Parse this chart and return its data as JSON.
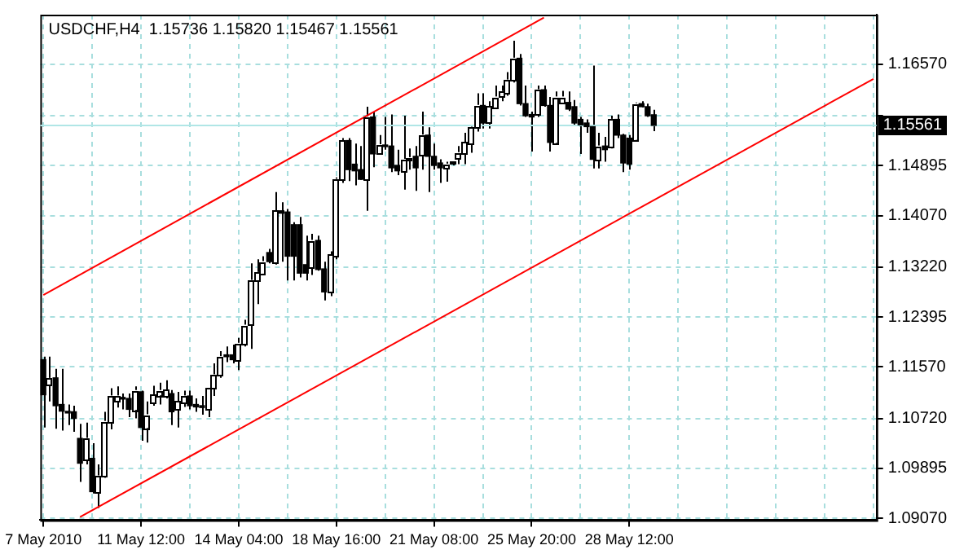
{
  "chart_data": {
    "type": "candlestick",
    "title": "USDCHF,H4  1.15736 1.15820 1.15467 1.15561",
    "categories": [
      "7 May 2010",
      null,
      null,
      null,
      null,
      null,
      null,
      null,
      null,
      null,
      null,
      null,
      null,
      null,
      null,
      null,
      "11 May 12:00",
      null,
      null,
      null,
      null,
      null,
      null,
      null,
      null,
      null,
      null,
      null,
      null,
      null,
      null,
      null,
      "14 May 04:00",
      null,
      null,
      null,
      null,
      null,
      null,
      null,
      null,
      null,
      null,
      null,
      null,
      null,
      null,
      null,
      "18 May 16:00",
      null,
      null,
      null,
      null,
      null,
      null,
      null,
      null,
      null,
      null,
      null,
      null,
      null,
      null,
      null,
      "21 May 08:00",
      null,
      null,
      null,
      null,
      null,
      null,
      null,
      null,
      null,
      null,
      null,
      null,
      null,
      null,
      null,
      "25 May 20:00",
      null,
      null,
      null,
      null,
      null,
      null,
      null,
      null,
      null,
      null,
      null,
      null,
      null,
      null,
      null,
      "28 May 12:00",
      null,
      null,
      null,
      null,
      null,
      null,
      null,
      null,
      null,
      null,
      null,
      null,
      null,
      null,
      null,
      null,
      null,
      null,
      null,
      null,
      null,
      null,
      null,
      null,
      null,
      null,
      null,
      null,
      null,
      null,
      null,
      null,
      null,
      null,
      null,
      null,
      null,
      null,
      null,
      null
    ],
    "ohlc": [
      [
        1.1169,
        1.1174,
        1.1057,
        1.1111
      ],
      [
        1.1128,
        1.1174,
        1.11,
        1.1138
      ],
      [
        1.1139,
        1.1154,
        1.1055,
        1.1093
      ],
      [
        1.1095,
        1.1154,
        1.1052,
        1.1084
      ],
      [
        1.1083,
        1.1095,
        1.1061,
        1.1081
      ],
      [
        1.1083,
        1.1093,
        1.105,
        1.1072
      ],
      [
        1.1039,
        1.1063,
        1.0967,
        1.0998
      ],
      [
        1.1003,
        1.1065,
        1.0996,
        1.1039
      ],
      [
        1.1006,
        1.1031,
        1.0948,
        1.0951
      ],
      [
        1.0951,
        1.0996,
        1.0924,
        1.0977
      ],
      [
        1.0977,
        1.1083,
        1.0974,
        1.1067
      ],
      [
        1.1067,
        1.1122,
        1.1054,
        1.1109
      ],
      [
        1.1102,
        1.1125,
        1.109,
        1.1109
      ],
      [
        1.1105,
        1.1113,
        1.1087,
        1.1104
      ],
      [
        1.1105,
        1.1113,
        1.1074,
        1.1087
      ],
      [
        1.1087,
        1.1125,
        1.1072,
        1.1118
      ],
      [
        1.1116,
        1.1118,
        1.1035,
        1.1057
      ],
      [
        1.1057,
        1.11,
        1.1032,
        1.1078
      ],
      [
        1.1098,
        1.1126,
        1.1093,
        1.1111
      ],
      [
        1.1111,
        1.1131,
        1.1095,
        1.1118
      ],
      [
        1.1109,
        1.1135,
        1.1105,
        1.1119
      ],
      [
        1.1113,
        1.1119,
        1.1061,
        1.1083
      ],
      [
        1.1087,
        1.1116,
        1.1057,
        1.11
      ],
      [
        1.1098,
        1.1118,
        1.1091,
        1.1109
      ],
      [
        1.1109,
        1.1118,
        1.1087,
        1.1093
      ],
      [
        1.1095,
        1.1105,
        1.1083,
        1.1091
      ],
      [
        1.1093,
        1.1109,
        1.1078,
        1.109
      ],
      [
        1.1087,
        1.1122,
        1.1074,
        1.1122
      ],
      [
        1.1122,
        1.1163,
        1.1109,
        1.1144
      ],
      [
        1.1144,
        1.1183,
        1.1139,
        1.1174
      ],
      [
        1.1177,
        1.1191,
        1.1165,
        1.1174
      ],
      [
        1.1177,
        1.1194,
        1.1163,
        1.1169
      ],
      [
        1.1169,
        1.1205,
        1.1152,
        1.1196
      ],
      [
        1.1196,
        1.1235,
        1.1191,
        1.1226
      ],
      [
        1.1226,
        1.1328,
        1.1187,
        1.13
      ],
      [
        1.13,
        1.1335,
        1.1261,
        1.1313
      ],
      [
        1.1312,
        1.134,
        1.1309,
        1.1331
      ],
      [
        1.1346,
        1.1352,
        1.1328,
        1.1331
      ],
      [
        1.1328,
        1.1446,
        1.1326,
        1.1415
      ],
      [
        1.1415,
        1.1429,
        1.1331,
        1.1411
      ],
      [
        1.1413,
        1.1418,
        1.13,
        1.134
      ],
      [
        1.1392,
        1.1396,
        1.13,
        1.134
      ],
      [
        1.1392,
        1.1405,
        1.1305,
        1.1312
      ],
      [
        1.1326,
        1.1374,
        1.13,
        1.1312
      ],
      [
        1.1322,
        1.1377,
        1.1309,
        1.1366
      ],
      [
        1.1366,
        1.1374,
        1.1316,
        1.1318
      ],
      [
        1.1319,
        1.1331,
        1.1267,
        1.1281
      ],
      [
        1.1281,
        1.1348,
        1.1274,
        1.1342
      ],
      [
        1.134,
        1.147,
        1.1335,
        1.1467
      ],
      [
        1.1467,
        1.1535,
        1.1461,
        1.1531
      ],
      [
        1.1531,
        1.1535,
        1.1464,
        1.1483
      ],
      [
        1.1492,
        1.1526,
        1.1457,
        1.1481
      ],
      [
        1.1483,
        1.1522,
        1.1466,
        1.1467
      ],
      [
        1.1467,
        1.1587,
        1.1415,
        1.157
      ],
      [
        1.157,
        1.1579,
        1.1487,
        1.1509
      ],
      [
        1.1511,
        1.154,
        1.1509,
        1.1524
      ],
      [
        1.1522,
        1.157,
        1.1516,
        1.1521
      ],
      [
        1.1522,
        1.1574,
        1.1479,
        1.1486
      ],
      [
        1.149,
        1.1516,
        1.1474,
        1.1481
      ],
      [
        1.1481,
        1.1572,
        1.145,
        1.15
      ],
      [
        1.15,
        1.1518,
        1.1483,
        1.1502
      ],
      [
        1.1505,
        1.1522,
        1.1448,
        1.1486
      ],
      [
        1.1507,
        1.1579,
        1.1483,
        1.154
      ],
      [
        1.154,
        1.1553,
        1.1446,
        1.1505
      ],
      [
        1.1505,
        1.1526,
        1.1483,
        1.149
      ],
      [
        1.1494,
        1.15,
        1.1461,
        1.1486
      ],
      [
        1.1486,
        1.1496,
        1.1463,
        1.1492
      ],
      [
        1.1493,
        1.1496,
        1.149,
        1.1495
      ],
      [
        1.1502,
        1.1522,
        1.1492,
        1.1511
      ],
      [
        1.1509,
        1.1544,
        1.1492,
        1.1528
      ],
      [
        1.1526,
        1.1557,
        1.1511,
        1.1553
      ],
      [
        1.1553,
        1.1609,
        1.1546,
        1.1589
      ],
      [
        1.1589,
        1.1609,
        1.1551,
        1.156
      ],
      [
        1.156,
        1.1596,
        1.1551,
        1.1587
      ],
      [
        1.1586,
        1.1622,
        1.1583,
        1.1603
      ],
      [
        1.1603,
        1.1622,
        1.1596,
        1.1612
      ],
      [
        1.1609,
        1.1644,
        1.1605,
        1.1631
      ],
      [
        1.1631,
        1.1696,
        1.1627,
        1.1667
      ],
      [
        1.1667,
        1.1674,
        1.1589,
        1.1592
      ],
      [
        1.1592,
        1.1622,
        1.157,
        1.1572
      ],
      [
        1.1574,
        1.1579,
        1.1513,
        1.157
      ],
      [
        1.1574,
        1.1622,
        1.157,
        1.1615
      ],
      [
        1.1615,
        1.1622,
        1.1587,
        1.1589
      ],
      [
        1.1589,
        1.1603,
        1.1513,
        1.1528
      ],
      [
        1.1528,
        1.1612,
        1.1526,
        1.1603
      ],
      [
        1.1594,
        1.1613,
        1.1592,
        1.1603
      ],
      [
        1.1594,
        1.1612,
        1.158,
        1.1583
      ],
      [
        1.1587,
        1.1598,
        1.1557,
        1.156
      ],
      [
        1.1566,
        1.157,
        1.1509,
        1.1557
      ],
      [
        1.156,
        1.1566,
        1.1544,
        1.1554
      ],
      [
        1.1554,
        1.1655,
        1.1485,
        1.15
      ],
      [
        1.15,
        1.1544,
        1.1485,
        1.1522
      ],
      [
        1.1522,
        1.1537,
        1.1496,
        1.1516
      ],
      [
        1.152,
        1.1572,
        1.1518,
        1.1566
      ],
      [
        1.1566,
        1.1574,
        1.1535,
        1.154
      ],
      [
        1.154,
        1.1542,
        1.1479,
        1.1494
      ],
      [
        1.1535,
        1.154,
        1.1483,
        1.1492
      ],
      [
        1.1533,
        1.1594,
        1.1531,
        1.1592
      ],
      [
        1.1592,
        1.1596,
        1.1586,
        1.1587
      ],
      [
        1.1587,
        1.1592,
        1.157,
        1.1572
      ],
      [
        1.15736,
        1.1582,
        1.15467,
        1.15561
      ],
      null,
      null,
      null,
      null,
      null,
      null,
      null,
      null,
      null,
      null,
      null,
      null,
      null,
      null,
      null,
      null,
      null,
      null,
      null,
      null,
      null,
      null,
      null,
      null,
      null,
      null,
      null,
      null,
      null,
      null,
      null,
      null,
      null,
      null,
      null,
      null
    ],
    "series": [
      {
        "type": "line",
        "color": "#ff0000",
        "values": [
          1.1276,
          null,
          null,
          null,
          null,
          null,
          null,
          null,
          null,
          null,
          null,
          null,
          null,
          null,
          null,
          null,
          null,
          null,
          null,
          null,
          null,
          null,
          null,
          null,
          null,
          null,
          null,
          null,
          null,
          null,
          null,
          null,
          null,
          null,
          null,
          null,
          null,
          null,
          null,
          null,
          null,
          null,
          null,
          null,
          null,
          null,
          null,
          null,
          null,
          null,
          null,
          null,
          null,
          null,
          null,
          null,
          null,
          null,
          null,
          null,
          null,
          null,
          null,
          null,
          null,
          null,
          null,
          null,
          null,
          null,
          null,
          null,
          null,
          null,
          null,
          null,
          null,
          null,
          null,
          null,
          null,
          null,
          1.1734,
          null,
          null,
          null,
          null,
          null,
          null,
          null,
          null,
          null,
          null,
          null,
          null,
          null,
          null,
          null,
          null,
          null,
          null,
          null,
          null,
          null,
          null,
          null,
          null,
          null,
          null,
          null,
          null,
          null,
          null,
          null,
          null,
          null,
          null,
          null,
          null,
          null,
          null,
          null,
          null,
          null,
          null,
          null,
          null,
          null,
          null,
          null,
          null,
          null,
          null,
          null,
          null,
          null,
          null
        ]
      },
      {
        "type": "line",
        "color": "#ff0000",
        "values": [
          null,
          null,
          null,
          null,
          null,
          null,
          1.0909,
          null,
          null,
          null,
          null,
          null,
          null,
          null,
          null,
          null,
          null,
          null,
          null,
          null,
          null,
          null,
          null,
          null,
          null,
          null,
          null,
          null,
          null,
          null,
          null,
          null,
          null,
          null,
          null,
          null,
          null,
          null,
          null,
          null,
          null,
          null,
          null,
          null,
          null,
          null,
          null,
          null,
          null,
          null,
          null,
          null,
          null,
          null,
          null,
          null,
          null,
          null,
          null,
          null,
          null,
          null,
          null,
          null,
          null,
          null,
          null,
          null,
          null,
          null,
          null,
          null,
          null,
          null,
          null,
          null,
          null,
          null,
          null,
          null,
          null,
          null,
          null,
          null,
          null,
          null,
          null,
          null,
          null,
          null,
          null,
          null,
          null,
          null,
          null,
          null,
          null,
          null,
          null,
          null,
          null,
          null,
          null,
          null,
          null,
          null,
          null,
          null,
          null,
          null,
          null,
          null,
          null,
          null,
          null,
          null,
          null,
          null,
          null,
          null,
          null,
          null,
          null,
          null,
          null,
          null,
          null,
          null,
          null,
          null,
          null,
          null,
          null,
          null,
          null,
          null,
          1.1633
        ]
      }
    ],
    "ylim": [
      1.0904,
      1.1739
    ],
    "yticks": [
      {
        "value": 1.0907,
        "label": "1.09070"
      },
      {
        "value": 1.09895,
        "label": "1.09895"
      },
      {
        "value": 1.1072,
        "label": "1.10720"
      },
      {
        "value": 1.1157,
        "label": "1.11570"
      },
      {
        "value": 1.12395,
        "label": "1.12395"
      },
      {
        "value": 1.1322,
        "label": "1.13220"
      },
      {
        "value": 1.1407,
        "label": "1.14070"
      },
      {
        "value": 1.14895,
        "label": "1.14895"
      },
      {
        "value": 1.1572,
        "label": null
      },
      {
        "value": 1.1657,
        "label": "1.16570"
      }
    ],
    "ref_lines": [
      {
        "axis": "y",
        "value": 1.15561,
        "label": "1.15561",
        "color": "#b0e6e6"
      }
    ],
    "grid": true
  }
}
